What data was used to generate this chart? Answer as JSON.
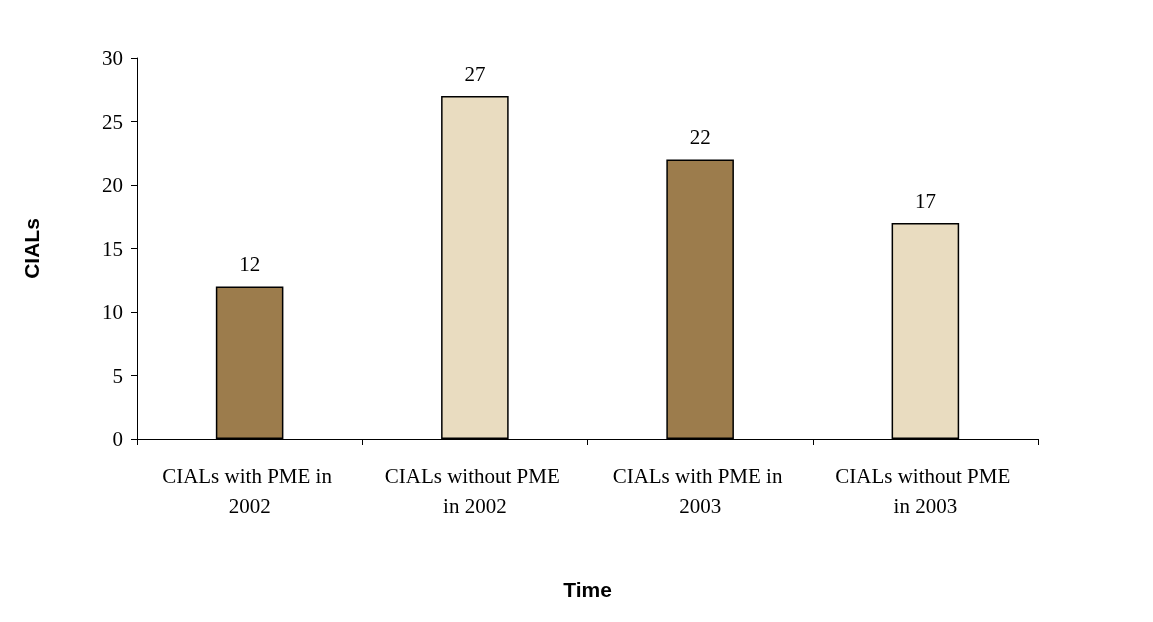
{
  "chart_data": {
    "type": "bar",
    "xlabel": "Time",
    "ylabel": "CIALs",
    "categories": [
      "CIALs with PME in 2002",
      "CIALs without PME in 2002",
      "CIALs with PME in 2003",
      "CIALs without PME in 2003"
    ],
    "values": [
      12,
      27,
      22,
      17
    ],
    "colors": [
      "#9c7c4c",
      "#e9dcc0",
      "#9c7c4c",
      "#e9dcc0"
    ],
    "ylim": [
      0,
      30
    ],
    "yticks": [
      0,
      5,
      10,
      15,
      20,
      25,
      30
    ],
    "grid": false,
    "data_labels": true
  }
}
